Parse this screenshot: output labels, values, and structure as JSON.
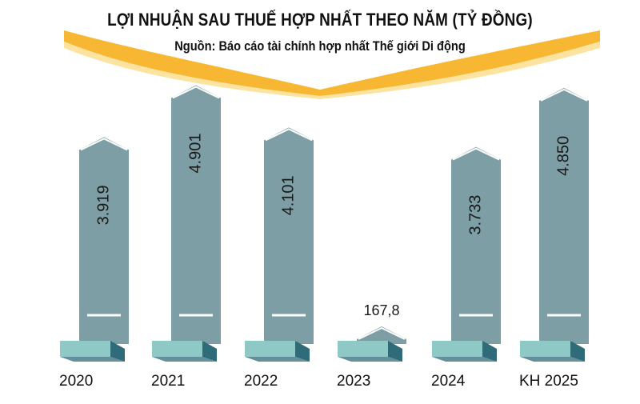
{
  "chart_data": {
    "type": "bar",
    "title": "LỢI NHUẬN SAU THUẾ HỢP NHẤT THEO NĂM (TỶ ĐỒNG)",
    "subtitle": "Nguồn: Báo cáo tài chính hợp nhất Thế giới Di động",
    "categories": [
      "2020",
      "2021",
      "2022",
      "2023",
      "2024",
      "KH 2025"
    ],
    "values": [
      3919,
      4901,
      4101,
      167.8,
      3733,
      4850
    ],
    "value_labels": [
      "3.919",
      "4.901",
      "4.101",
      "167,8",
      "3.733",
      "4.850"
    ],
    "ylim": [
      0,
      5000
    ],
    "grid": false,
    "colors": {
      "bar": "#7d9ea4",
      "bar_edge": "#ffffff",
      "base_light": "#8ec9c6",
      "base_dark": "#2f6b78",
      "banner_gold": "#f7b733",
      "banner_light": "#fde3a0"
    }
  }
}
